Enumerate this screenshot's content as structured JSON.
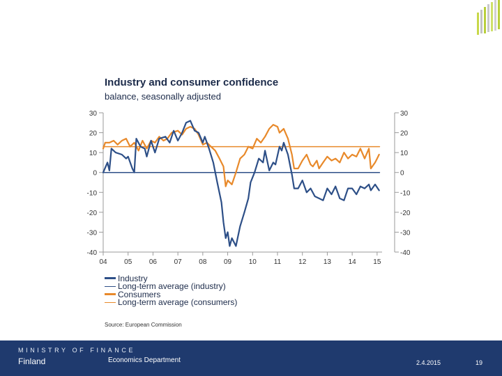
{
  "colors": {
    "industry": "#2d4f87",
    "consumers": "#e8892a",
    "footer_bg": "#1f3a6e"
  },
  "footer": {
    "ministry": "MINISTRY OF FINANCE",
    "country": "Finland",
    "department": "Economics Department",
    "date": "2.4.2015",
    "page_number": "19"
  },
  "chart_data": {
    "type": "line",
    "title": "Industry and consumer confidence",
    "subtitle": "balance, seasonally adjusted",
    "source": "Source: European Commission",
    "ylim": [
      -40,
      30
    ],
    "yticks_left": [
      "30",
      "20",
      "10",
      "0",
      "-10",
      "-20",
      "-30",
      "-40"
    ],
    "yticks_right": [
      "30",
      "20",
      "10",
      "0",
      "-10",
      "-20",
      "-30",
      "-40"
    ],
    "xticks": [
      "04",
      "05",
      "06",
      "07",
      "08",
      "09",
      "10",
      "11",
      "12",
      "13",
      "14",
      "15"
    ],
    "xlim": [
      2004.0,
      2015.2
    ],
    "legend": [
      {
        "label": "Industry",
        "color": "#2d4f87",
        "style": "thick"
      },
      {
        "label": "Long-term average (industry)",
        "color": "#2d4f87",
        "style": "thin"
      },
      {
        "label": "Consumers",
        "color": "#e8892a",
        "style": "thick"
      },
      {
        "label": "Long-term average (consumers)",
        "color": "#e8892a",
        "style": "thin"
      }
    ],
    "series": [
      {
        "name": "Industry",
        "color": "#2d4f87",
        "points": [
          [
            2004.0,
            0
          ],
          [
            2004.17,
            5
          ],
          [
            2004.25,
            1
          ],
          [
            2004.33,
            12
          ],
          [
            2004.5,
            10
          ],
          [
            2004.75,
            9
          ],
          [
            2004.92,
            7
          ],
          [
            2005.0,
            8
          ],
          [
            2005.17,
            2
          ],
          [
            2005.25,
            0
          ],
          [
            2005.33,
            17
          ],
          [
            2005.5,
            13
          ],
          [
            2005.67,
            12
          ],
          [
            2005.75,
            8
          ],
          [
            2005.92,
            16
          ],
          [
            2006.08,
            10
          ],
          [
            2006.25,
            17
          ],
          [
            2006.5,
            18
          ],
          [
            2006.67,
            15
          ],
          [
            2006.83,
            21
          ],
          [
            2007.0,
            16
          ],
          [
            2007.17,
            20
          ],
          [
            2007.33,
            25
          ],
          [
            2007.5,
            26
          ],
          [
            2007.67,
            21
          ],
          [
            2007.83,
            20
          ],
          [
            2008.0,
            15
          ],
          [
            2008.08,
            18
          ],
          [
            2008.25,
            12
          ],
          [
            2008.42,
            5
          ],
          [
            2008.58,
            -5
          ],
          [
            2008.75,
            -15
          ],
          [
            2008.83,
            -25
          ],
          [
            2008.92,
            -33
          ],
          [
            2009.0,
            -30
          ],
          [
            2009.08,
            -37
          ],
          [
            2009.17,
            -33
          ],
          [
            2009.33,
            -37
          ],
          [
            2009.5,
            -27
          ],
          [
            2009.67,
            -20
          ],
          [
            2009.83,
            -13
          ],
          [
            2009.92,
            -5
          ],
          [
            2010.08,
            0
          ],
          [
            2010.25,
            7
          ],
          [
            2010.42,
            5
          ],
          [
            2010.5,
            11
          ],
          [
            2010.67,
            1
          ],
          [
            2010.83,
            5
          ],
          [
            2010.92,
            4
          ],
          [
            2011.08,
            13
          ],
          [
            2011.17,
            11
          ],
          [
            2011.25,
            15
          ],
          [
            2011.42,
            9
          ],
          [
            2011.58,
            -1
          ],
          [
            2011.67,
            -8
          ],
          [
            2011.83,
            -8
          ],
          [
            2012.0,
            -4
          ],
          [
            2012.17,
            -10
          ],
          [
            2012.33,
            -8
          ],
          [
            2012.5,
            -12
          ],
          [
            2012.67,
            -13
          ],
          [
            2012.83,
            -14
          ],
          [
            2013.0,
            -8
          ],
          [
            2013.17,
            -11
          ],
          [
            2013.33,
            -7
          ],
          [
            2013.5,
            -13
          ],
          [
            2013.67,
            -14
          ],
          [
            2013.83,
            -8
          ],
          [
            2014.0,
            -8
          ],
          [
            2014.17,
            -11
          ],
          [
            2014.33,
            -7
          ],
          [
            2014.5,
            -8
          ],
          [
            2014.67,
            -6
          ],
          [
            2014.75,
            -9
          ],
          [
            2014.92,
            -6
          ],
          [
            2015.08,
            -9
          ]
        ]
      },
      {
        "name": "Long-term average (industry)",
        "color": "#2d4f87",
        "points": [
          [
            2004.0,
            0
          ],
          [
            2015.1,
            0
          ]
        ]
      },
      {
        "name": "Consumers",
        "color": "#e8892a",
        "points": [
          [
            2004.0,
            12
          ],
          [
            2004.08,
            15
          ],
          [
            2004.25,
            15
          ],
          [
            2004.42,
            16
          ],
          [
            2004.58,
            14
          ],
          [
            2004.75,
            16
          ],
          [
            2004.92,
            17
          ],
          [
            2005.08,
            13
          ],
          [
            2005.25,
            15
          ],
          [
            2005.42,
            11
          ],
          [
            2005.58,
            16
          ],
          [
            2005.75,
            12
          ],
          [
            2005.92,
            16
          ],
          [
            2006.08,
            15
          ],
          [
            2006.25,
            18
          ],
          [
            2006.42,
            16
          ],
          [
            2006.58,
            17
          ],
          [
            2006.75,
            20
          ],
          [
            2007.0,
            21
          ],
          [
            2007.17,
            19
          ],
          [
            2007.33,
            22
          ],
          [
            2007.5,
            23
          ],
          [
            2007.67,
            22
          ],
          [
            2007.83,
            19
          ],
          [
            2008.0,
            14
          ],
          [
            2008.17,
            15
          ],
          [
            2008.33,
            13
          ],
          [
            2008.5,
            11
          ],
          [
            2008.67,
            7
          ],
          [
            2008.83,
            3
          ],
          [
            2008.92,
            -7
          ],
          [
            2009.0,
            -4
          ],
          [
            2009.17,
            -6
          ],
          [
            2009.33,
            0
          ],
          [
            2009.5,
            7
          ],
          [
            2009.67,
            9
          ],
          [
            2009.83,
            13
          ],
          [
            2010.0,
            12
          ],
          [
            2010.17,
            17
          ],
          [
            2010.33,
            15
          ],
          [
            2010.5,
            18
          ],
          [
            2010.67,
            22
          ],
          [
            2010.83,
            24
          ],
          [
            2011.0,
            23
          ],
          [
            2011.08,
            20
          ],
          [
            2011.25,
            22
          ],
          [
            2011.42,
            17
          ],
          [
            2011.58,
            9
          ],
          [
            2011.67,
            2
          ],
          [
            2011.83,
            2
          ],
          [
            2012.0,
            6
          ],
          [
            2012.17,
            9
          ],
          [
            2012.33,
            4
          ],
          [
            2012.42,
            3
          ],
          [
            2012.58,
            6
          ],
          [
            2012.67,
            2
          ],
          [
            2012.83,
            5
          ],
          [
            2013.0,
            8
          ],
          [
            2013.17,
            6
          ],
          [
            2013.33,
            7
          ],
          [
            2013.5,
            5
          ],
          [
            2013.67,
            10
          ],
          [
            2013.83,
            7
          ],
          [
            2014.0,
            9
          ],
          [
            2014.17,
            8
          ],
          [
            2014.33,
            12
          ],
          [
            2014.5,
            7
          ],
          [
            2014.67,
            12
          ],
          [
            2014.75,
            2
          ],
          [
            2014.92,
            5
          ],
          [
            2015.0,
            7
          ],
          [
            2015.08,
            9
          ]
        ]
      },
      {
        "name": "Long-term average (consumers)",
        "color": "#e8892a",
        "points": [
          [
            2004.0,
            13
          ],
          [
            2015.1,
            13
          ]
        ]
      }
    ]
  }
}
